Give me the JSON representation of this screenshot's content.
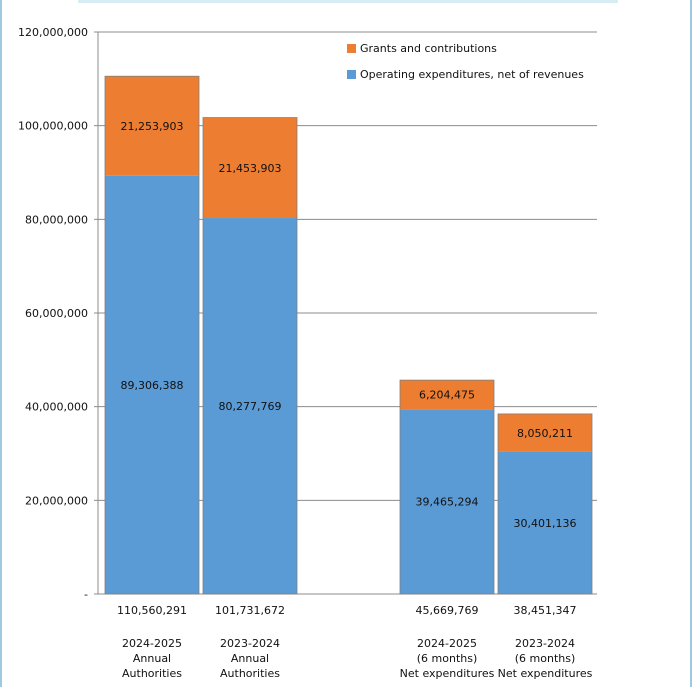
{
  "chart_data": {
    "type": "bar",
    "stacked": true,
    "title": "",
    "xlabel": "",
    "ylabel": "",
    "ylim": [
      0,
      120000000
    ],
    "yticks": [
      0,
      20000000,
      40000000,
      60000000,
      80000000,
      100000000,
      120000000
    ],
    "ytick_labels": [
      "-",
      "20,000,000",
      "40,000,000",
      "60,000,000",
      "80,000,000",
      "100,000,000",
      "120,000,000"
    ],
    "grid": true,
    "legend_position": "top-right",
    "categories": [
      {
        "total": "110,560,291",
        "lines": [
          "2024-2025",
          "Annual",
          "Authorities"
        ]
      },
      {
        "total": "101,731,672",
        "lines": [
          "2023-2024",
          "Annual",
          "Authorities"
        ]
      },
      {
        "total": "45,669,769",
        "lines": [
          "2024-2025",
          "(6 months)",
          "Net expenditures"
        ]
      },
      {
        "total": "38,451,347",
        "lines": [
          "2023-2024",
          "(6 months)",
          "Net expenditures"
        ]
      }
    ],
    "series": [
      {
        "name": "Operating expenditures, net of revenues",
        "color": "#5b9bd5",
        "values": [
          89306388,
          80277769,
          39465294,
          30401136
        ],
        "labels": [
          "89,306,388",
          "80,277,769",
          "39,465,294",
          "30,401,136"
        ]
      },
      {
        "name": "Grants and contributions",
        "color": "#ed7d31",
        "values": [
          21253903,
          21453903,
          6204475,
          8050211
        ],
        "labels": [
          "21,253,903",
          "21,453,903",
          "6,204,475",
          "8,050,211"
        ]
      }
    ],
    "legend_order": [
      1,
      0
    ]
  }
}
